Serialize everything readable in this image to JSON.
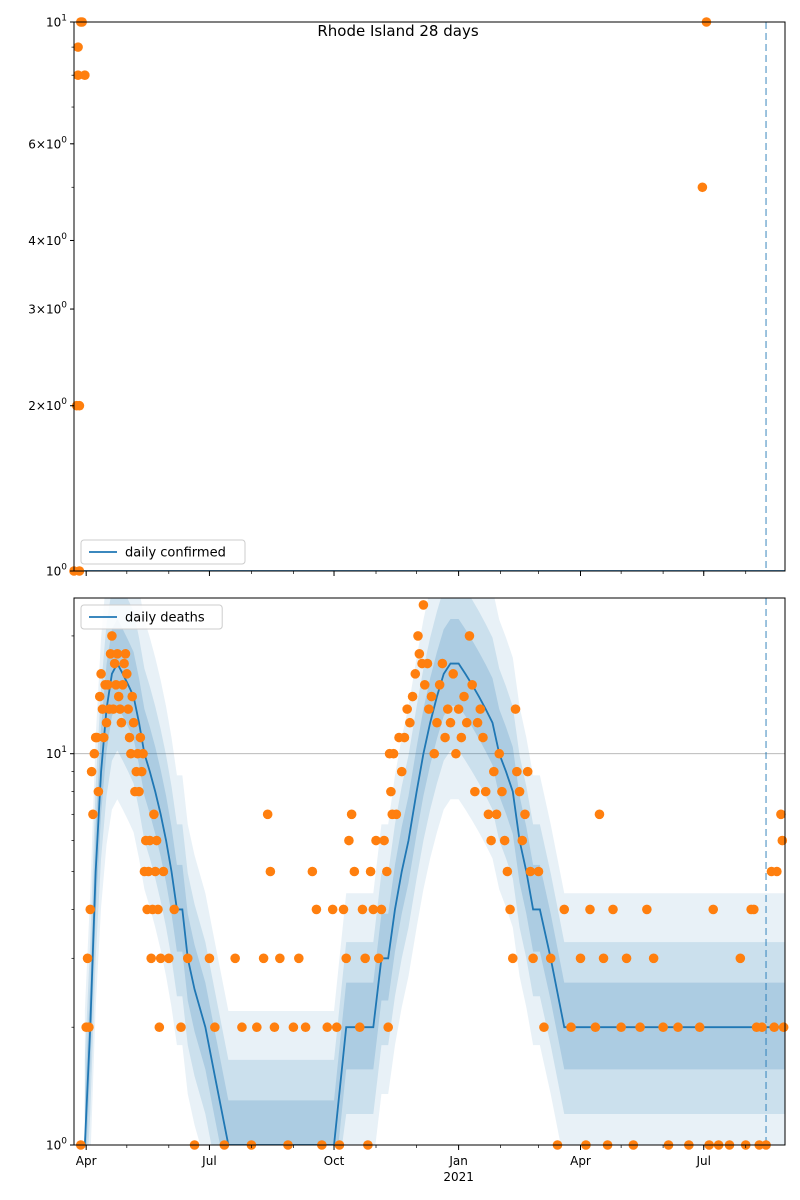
{
  "title": "Rhode Island 28 days",
  "colors": {
    "line": "#1f77b4",
    "points": "#ff7f0e",
    "band": "#1f77b4",
    "vline": "#1f77b4",
    "grid": "#b0b0b0"
  },
  "x_ticks": [
    {
      "date": "2020-04-01",
      "label": "Apr",
      "sub": ""
    },
    {
      "date": "2020-07-01",
      "label": "Jul",
      "sub": ""
    },
    {
      "date": "2020-10-01",
      "label": "Oct",
      "sub": ""
    },
    {
      "date": "2021-01-01",
      "label": "Jan",
      "sub": "2021"
    },
    {
      "date": "2021-04-01",
      "label": "Apr",
      "sub": ""
    },
    {
      "date": "2021-07-01",
      "label": "Jul",
      "sub": ""
    }
  ],
  "chart_data": [
    {
      "type": "scatter",
      "panel": "top",
      "title": "Rhode Island 28 days",
      "xlim": [
        "2020-03-23",
        "2021-08-30"
      ],
      "ylim": [
        1,
        10
      ],
      "yscale": "log",
      "y_ticks": [
        {
          "value": 1,
          "label": "10^0"
        },
        {
          "value": 2,
          "label": "2×10^0"
        },
        {
          "value": 3,
          "label": "3×10^0"
        },
        {
          "value": 4,
          "label": "4×10^0"
        },
        {
          "value": 6,
          "label": "6×10^0"
        },
        {
          "value": 10,
          "label": "10^1"
        }
      ],
      "legend": {
        "label": "daily confirmed",
        "position": "lower-left"
      },
      "vline": "2021-08-16",
      "line_series": {
        "name": "daily confirmed",
        "x": [
          "2020-03-23",
          "2021-08-30"
        ],
        "y": [
          1,
          1
        ]
      },
      "points": [
        {
          "x": "2020-03-23",
          "y": 1
        },
        {
          "x": "2020-03-25",
          "y": 2
        },
        {
          "x": "2020-03-26",
          "y": 9
        },
        {
          "x": "2020-03-26",
          "y": 8
        },
        {
          "x": "2020-03-27",
          "y": 2
        },
        {
          "x": "2020-03-27",
          "y": 1
        },
        {
          "x": "2020-03-28",
          "y": 10
        },
        {
          "x": "2020-03-29",
          "y": 10
        },
        {
          "x": "2020-03-31",
          "y": 8
        },
        {
          "x": "2021-06-30",
          "y": 5
        },
        {
          "x": "2021-07-03",
          "y": 10
        }
      ]
    },
    {
      "type": "scatter",
      "panel": "bottom",
      "xlim": [
        "2020-03-23",
        "2021-08-30"
      ],
      "ylim": [
        1,
        25
      ],
      "yscale": "log",
      "grid": "y-major",
      "y_ticks": [
        {
          "value": 1,
          "label": "10^0"
        },
        {
          "value": 10,
          "label": "10^1"
        }
      ],
      "legend": {
        "label": "daily deaths",
        "position": "upper-left"
      },
      "vline": "2021-08-16",
      "line_series": {
        "name": "daily deaths",
        "x": [
          "2020-03-31",
          "2020-04-04",
          "2020-04-08",
          "2020-04-12",
          "2020-04-16",
          "2020-04-20",
          "2020-04-24",
          "2020-04-28",
          "2020-05-02",
          "2020-05-06",
          "2020-05-10",
          "2020-05-14",
          "2020-05-18",
          "2020-05-22",
          "2020-05-26",
          "2020-05-30",
          "2020-06-03",
          "2020-06-07",
          "2020-06-11",
          "2020-06-15",
          "2020-06-20",
          "2020-06-28",
          "2020-07-05",
          "2020-07-15",
          "2020-08-01",
          "2020-08-15",
          "2020-09-01",
          "2020-09-15",
          "2020-10-01",
          "2020-10-10",
          "2020-10-20",
          "2020-10-30",
          "2020-11-05",
          "2020-11-10",
          "2020-11-15",
          "2020-11-20",
          "2020-11-25",
          "2020-12-01",
          "2020-12-06",
          "2020-12-11",
          "2020-12-16",
          "2020-12-21",
          "2020-12-26",
          "2021-01-01",
          "2021-01-06",
          "2021-01-11",
          "2021-01-16",
          "2021-01-21",
          "2021-01-26",
          "2021-01-31",
          "2021-02-05",
          "2021-02-10",
          "2021-02-15",
          "2021-02-20",
          "2021-02-25",
          "2021-03-02",
          "2021-03-10",
          "2021-03-20",
          "2021-04-01",
          "2021-04-15",
          "2021-05-01",
          "2021-06-01",
          "2021-07-01",
          "2021-08-01",
          "2021-08-30"
        ],
        "y": [
          1,
          2,
          5,
          9,
          13,
          16,
          17,
          16,
          15,
          14,
          12,
          10,
          9,
          8,
          7,
          6,
          5,
          4,
          4,
          3,
          2.5,
          2,
          1.5,
          1,
          1,
          1,
          1,
          1,
          1,
          2,
          2,
          2,
          3,
          3,
          4,
          5,
          6,
          8,
          10,
          12,
          14,
          16,
          17,
          17,
          16,
          15,
          14,
          13,
          12,
          10,
          9,
          8,
          6,
          5,
          4,
          4,
          3,
          2,
          2,
          2,
          2,
          2,
          2,
          2,
          2
        ]
      },
      "points": [
        {
          "x": "2020-03-28",
          "y": 1
        },
        {
          "x": "2020-04-01",
          "y": 2
        },
        {
          "x": "2020-04-02",
          "y": 3
        },
        {
          "x": "2020-04-03",
          "y": 2
        },
        {
          "x": "2020-04-04",
          "y": 4
        },
        {
          "x": "2020-04-05",
          "y": 9
        },
        {
          "x": "2020-04-06",
          "y": 7
        },
        {
          "x": "2020-04-07",
          "y": 10
        },
        {
          "x": "2020-04-08",
          "y": 11
        },
        {
          "x": "2020-04-09",
          "y": 11
        },
        {
          "x": "2020-04-10",
          "y": 8
        },
        {
          "x": "2020-04-11",
          "y": 14
        },
        {
          "x": "2020-04-12",
          "y": 16
        },
        {
          "x": "2020-04-13",
          "y": 13
        },
        {
          "x": "2020-04-14",
          "y": 11
        },
        {
          "x": "2020-04-15",
          "y": 15
        },
        {
          "x": "2020-04-16",
          "y": 12
        },
        {
          "x": "2020-04-17",
          "y": 15
        },
        {
          "x": "2020-04-18",
          "y": 13
        },
        {
          "x": "2020-04-19",
          "y": 18
        },
        {
          "x": "2020-04-20",
          "y": 20
        },
        {
          "x": "2020-04-21",
          "y": 13
        },
        {
          "x": "2020-04-22",
          "y": 17
        },
        {
          "x": "2020-04-23",
          "y": 15
        },
        {
          "x": "2020-04-24",
          "y": 18
        },
        {
          "x": "2020-04-25",
          "y": 14
        },
        {
          "x": "2020-04-26",
          "y": 13
        },
        {
          "x": "2020-04-27",
          "y": 12
        },
        {
          "x": "2020-04-28",
          "y": 15
        },
        {
          "x": "2020-04-29",
          "y": 17
        },
        {
          "x": "2020-04-30",
          "y": 18
        },
        {
          "x": "2020-05-01",
          "y": 16
        },
        {
          "x": "2020-05-02",
          "y": 13
        },
        {
          "x": "2020-05-03",
          "y": 11
        },
        {
          "x": "2020-05-04",
          "y": 10
        },
        {
          "x": "2020-05-05",
          "y": 14
        },
        {
          "x": "2020-05-06",
          "y": 12
        },
        {
          "x": "2020-05-07",
          "y": 8
        },
        {
          "x": "2020-05-08",
          "y": 9
        },
        {
          "x": "2020-05-09",
          "y": 10
        },
        {
          "x": "2020-05-10",
          "y": 8
        },
        {
          "x": "2020-05-11",
          "y": 11
        },
        {
          "x": "2020-05-12",
          "y": 9
        },
        {
          "x": "2020-05-13",
          "y": 10
        },
        {
          "x": "2020-05-14",
          "y": 5
        },
        {
          "x": "2020-05-15",
          "y": 6
        },
        {
          "x": "2020-05-16",
          "y": 4
        },
        {
          "x": "2020-05-17",
          "y": 5
        },
        {
          "x": "2020-05-18",
          "y": 6
        },
        {
          "x": "2020-05-19",
          "y": 3
        },
        {
          "x": "2020-05-20",
          "y": 4
        },
        {
          "x": "2020-05-21",
          "y": 7
        },
        {
          "x": "2020-05-22",
          "y": 5
        },
        {
          "x": "2020-05-23",
          "y": 6
        },
        {
          "x": "2020-05-24",
          "y": 4
        },
        {
          "x": "2020-05-25",
          "y": 2
        },
        {
          "x": "2020-05-26",
          "y": 3
        },
        {
          "x": "2020-05-28",
          "y": 5
        },
        {
          "x": "2020-06-01",
          "y": 3
        },
        {
          "x": "2020-06-05",
          "y": 4
        },
        {
          "x": "2020-06-10",
          "y": 2
        },
        {
          "x": "2020-06-15",
          "y": 3
        },
        {
          "x": "2020-06-20",
          "y": 1
        },
        {
          "x": "2020-07-01",
          "y": 3
        },
        {
          "x": "2020-07-05",
          "y": 2
        },
        {
          "x": "2020-07-12",
          "y": 1
        },
        {
          "x": "2020-07-20",
          "y": 3
        },
        {
          "x": "2020-07-25",
          "y": 2
        },
        {
          "x": "2020-08-01",
          "y": 1
        },
        {
          "x": "2020-08-05",
          "y": 2
        },
        {
          "x": "2020-08-10",
          "y": 3
        },
        {
          "x": "2020-08-13",
          "y": 7
        },
        {
          "x": "2020-08-15",
          "y": 5
        },
        {
          "x": "2020-08-18",
          "y": 2
        },
        {
          "x": "2020-08-22",
          "y": 3
        },
        {
          "x": "2020-08-28",
          "y": 1
        },
        {
          "x": "2020-09-01",
          "y": 2
        },
        {
          "x": "2020-09-05",
          "y": 3
        },
        {
          "x": "2020-09-10",
          "y": 2
        },
        {
          "x": "2020-09-15",
          "y": 5
        },
        {
          "x": "2020-09-18",
          "y": 4
        },
        {
          "x": "2020-09-22",
          "y": 1
        },
        {
          "x": "2020-09-26",
          "y": 2
        },
        {
          "x": "2020-09-30",
          "y": 4
        },
        {
          "x": "2020-10-03",
          "y": 2
        },
        {
          "x": "2020-10-05",
          "y": 1
        },
        {
          "x": "2020-10-08",
          "y": 4
        },
        {
          "x": "2020-10-10",
          "y": 3
        },
        {
          "x": "2020-10-12",
          "y": 6
        },
        {
          "x": "2020-10-14",
          "y": 7
        },
        {
          "x": "2020-10-16",
          "y": 5
        },
        {
          "x": "2020-10-20",
          "y": 2
        },
        {
          "x": "2020-10-22",
          "y": 4
        },
        {
          "x": "2020-10-24",
          "y": 3
        },
        {
          "x": "2020-10-26",
          "y": 1
        },
        {
          "x": "2020-10-28",
          "y": 5
        },
        {
          "x": "2020-10-30",
          "y": 4
        },
        {
          "x": "2020-11-01",
          "y": 6
        },
        {
          "x": "2020-11-03",
          "y": 3
        },
        {
          "x": "2020-11-05",
          "y": 4
        },
        {
          "x": "2020-11-07",
          "y": 6
        },
        {
          "x": "2020-11-09",
          "y": 5
        },
        {
          "x": "2020-11-10",
          "y": 2
        },
        {
          "x": "2020-11-11",
          "y": 10
        },
        {
          "x": "2020-11-12",
          "y": 8
        },
        {
          "x": "2020-11-13",
          "y": 7
        },
        {
          "x": "2020-11-14",
          "y": 10
        },
        {
          "x": "2020-11-16",
          "y": 7
        },
        {
          "x": "2020-11-18",
          "y": 11
        },
        {
          "x": "2020-11-20",
          "y": 9
        },
        {
          "x": "2020-11-22",
          "y": 11
        },
        {
          "x": "2020-11-24",
          "y": 13
        },
        {
          "x": "2020-11-26",
          "y": 12
        },
        {
          "x": "2020-11-28",
          "y": 14
        },
        {
          "x": "2020-11-30",
          "y": 16
        },
        {
          "x": "2020-12-02",
          "y": 20
        },
        {
          "x": "2020-12-03",
          "y": 18
        },
        {
          "x": "2020-12-05",
          "y": 17
        },
        {
          "x": "2020-12-06",
          "y": 24
        },
        {
          "x": "2020-12-07",
          "y": 15
        },
        {
          "x": "2020-12-09",
          "y": 17
        },
        {
          "x": "2020-12-10",
          "y": 13
        },
        {
          "x": "2020-12-12",
          "y": 14
        },
        {
          "x": "2020-12-14",
          "y": 10
        },
        {
          "x": "2020-12-16",
          "y": 12
        },
        {
          "x": "2020-12-18",
          "y": 15
        },
        {
          "x": "2020-12-20",
          "y": 17
        },
        {
          "x": "2020-12-22",
          "y": 11
        },
        {
          "x": "2020-12-24",
          "y": 13
        },
        {
          "x": "2020-12-26",
          "y": 12
        },
        {
          "x": "2020-12-28",
          "y": 16
        },
        {
          "x": "2020-12-30",
          "y": 10
        },
        {
          "x": "2021-01-01",
          "y": 13
        },
        {
          "x": "2021-01-03",
          "y": 11
        },
        {
          "x": "2021-01-05",
          "y": 14
        },
        {
          "x": "2021-01-07",
          "y": 12
        },
        {
          "x": "2021-01-09",
          "y": 20
        },
        {
          "x": "2021-01-11",
          "y": 15
        },
        {
          "x": "2021-01-13",
          "y": 8
        },
        {
          "x": "2021-01-15",
          "y": 12
        },
        {
          "x": "2021-01-17",
          "y": 13
        },
        {
          "x": "2021-01-19",
          "y": 11
        },
        {
          "x": "2021-01-21",
          "y": 8
        },
        {
          "x": "2021-01-23",
          "y": 7
        },
        {
          "x": "2021-01-25",
          "y": 6
        },
        {
          "x": "2021-01-27",
          "y": 9
        },
        {
          "x": "2021-01-29",
          "y": 7
        },
        {
          "x": "2021-01-31",
          "y": 10
        },
        {
          "x": "2021-02-02",
          "y": 8
        },
        {
          "x": "2021-02-04",
          "y": 6
        },
        {
          "x": "2021-02-06",
          "y": 5
        },
        {
          "x": "2021-02-08",
          "y": 4
        },
        {
          "x": "2021-02-10",
          "y": 3
        },
        {
          "x": "2021-02-12",
          "y": 13
        },
        {
          "x": "2021-02-13",
          "y": 9
        },
        {
          "x": "2021-02-15",
          "y": 8
        },
        {
          "x": "2021-02-17",
          "y": 6
        },
        {
          "x": "2021-02-19",
          "y": 7
        },
        {
          "x": "2021-02-21",
          "y": 9
        },
        {
          "x": "2021-02-23",
          "y": 5
        },
        {
          "x": "2021-02-25",
          "y": 3
        },
        {
          "x": "2021-03-01",
          "y": 5
        },
        {
          "x": "2021-03-05",
          "y": 2
        },
        {
          "x": "2021-03-10",
          "y": 3
        },
        {
          "x": "2021-03-15",
          "y": 1
        },
        {
          "x": "2021-03-20",
          "y": 4
        },
        {
          "x": "2021-03-25",
          "y": 2
        },
        {
          "x": "2021-04-01",
          "y": 3
        },
        {
          "x": "2021-04-05",
          "y": 1
        },
        {
          "x": "2021-04-08",
          "y": 4
        },
        {
          "x": "2021-04-12",
          "y": 2
        },
        {
          "x": "2021-04-15",
          "y": 7
        },
        {
          "x": "2021-04-18",
          "y": 3
        },
        {
          "x": "2021-04-21",
          "y": 1
        },
        {
          "x": "2021-04-25",
          "y": 4
        },
        {
          "x": "2021-05-01",
          "y": 2
        },
        {
          "x": "2021-05-05",
          "y": 3
        },
        {
          "x": "2021-05-10",
          "y": 1
        },
        {
          "x": "2021-05-15",
          "y": 2
        },
        {
          "x": "2021-05-20",
          "y": 4
        },
        {
          "x": "2021-05-25",
          "y": 3
        },
        {
          "x": "2021-06-01",
          "y": 2
        },
        {
          "x": "2021-06-05",
          "y": 1
        },
        {
          "x": "2021-06-12",
          "y": 2
        },
        {
          "x": "2021-06-20",
          "y": 1
        },
        {
          "x": "2021-06-28",
          "y": 2
        },
        {
          "x": "2021-07-05",
          "y": 1
        },
        {
          "x": "2021-07-08",
          "y": 4
        },
        {
          "x": "2021-07-12",
          "y": 1
        },
        {
          "x": "2021-07-20",
          "y": 1
        },
        {
          "x": "2021-07-28",
          "y": 3
        },
        {
          "x": "2021-08-01",
          "y": 1
        },
        {
          "x": "2021-08-05",
          "y": 4
        },
        {
          "x": "2021-08-07",
          "y": 4
        },
        {
          "x": "2021-08-09",
          "y": 2
        },
        {
          "x": "2021-08-11",
          "y": 1
        },
        {
          "x": "2021-08-13",
          "y": 2
        },
        {
          "x": "2021-08-16",
          "y": 1
        },
        {
          "x": "2021-08-20",
          "y": 5
        },
        {
          "x": "2021-08-22",
          "y": 2
        },
        {
          "x": "2021-08-24",
          "y": 5
        },
        {
          "x": "2021-08-27",
          "y": 7
        },
        {
          "x": "2021-08-28",
          "y": 6
        },
        {
          "x": "2021-08-29",
          "y": 2
        }
      ]
    }
  ]
}
